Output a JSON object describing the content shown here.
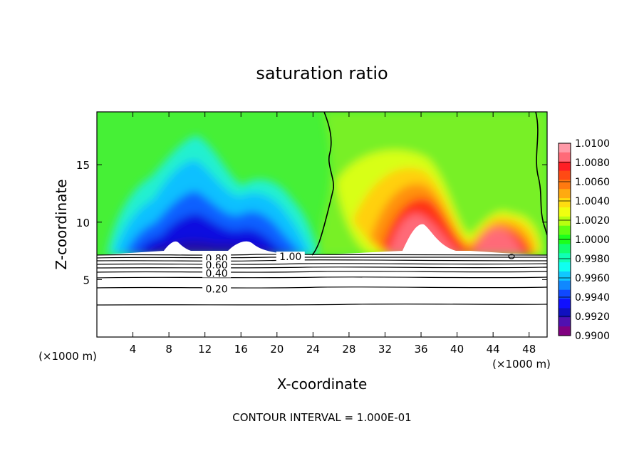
{
  "chart_data": {
    "type": "heatmap",
    "title": "saturation ratio",
    "xlabel": "X-coordinate",
    "ylabel": "Z-coordinate",
    "x_unit_left": "(×1000 m)",
    "x_unit_right": "(×1000 m)",
    "xlim": [
      0,
      50
    ],
    "ylim": [
      0,
      19.6
    ],
    "x_ticks": [
      4,
      8,
      12,
      16,
      20,
      24,
      28,
      32,
      36,
      40,
      44,
      48
    ],
    "y_ticks": [
      5,
      10,
      15
    ],
    "colorbar": {
      "levels": [
        "1.0100",
        "1.0080",
        "1.0060",
        "1.0040",
        "1.0020",
        "1.0000",
        "0.9980",
        "0.9960",
        "0.9940",
        "0.9920",
        "0.9900"
      ],
      "colors": [
        "#ff9aa8",
        "#ff6a78",
        "#ff1e24",
        "#ff4a14",
        "#ff7a10",
        "#ffaa10",
        "#ffdd10",
        "#f0ff10",
        "#b8ff10",
        "#60ff10",
        "#1cff1c",
        "#10ff70",
        "#10ffb4",
        "#10fff0",
        "#10c8ff",
        "#1088ff",
        "#1048ff",
        "#1010ff",
        "#1010c0",
        "#5010b0",
        "#800080"
      ]
    },
    "contour_labels": [
      {
        "text": "0.80",
        "x": 13.3,
        "z": 6.85
      },
      {
        "text": "0.60",
        "x": 13.3,
        "z": 6.25
      },
      {
        "text": "0.40",
        "x": 13.3,
        "z": 5.55
      },
      {
        "text": "0.20",
        "x": 13.3,
        "z": 4.2
      },
      {
        "text": "1.00",
        "x": 21.5,
        "z": 7.0
      }
    ],
    "contour_interval_text": "CONTOUR INTERVAL = 1.000E-01"
  }
}
